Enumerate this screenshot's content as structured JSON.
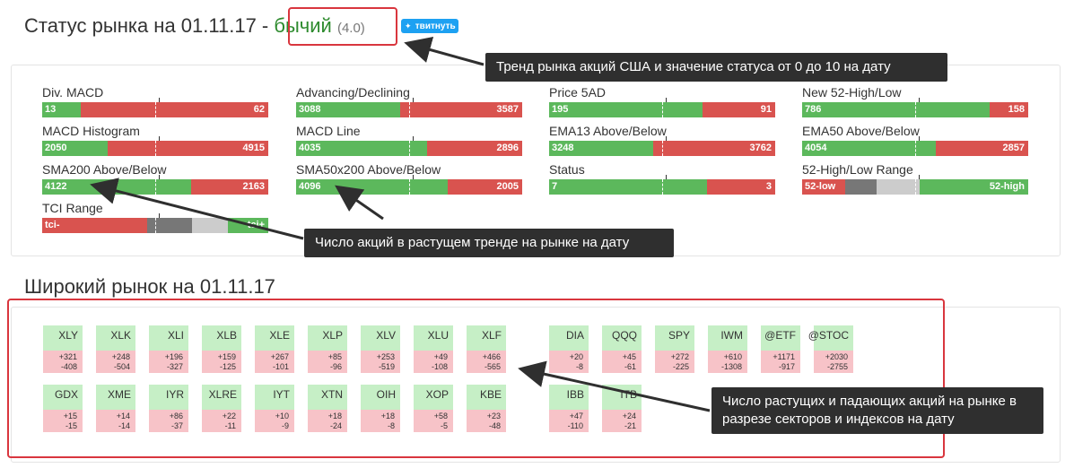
{
  "status": {
    "prefix": "Статус рынка на 01.11.17 -",
    "trend": "бычий",
    "score": "(4.0)",
    "tweet": "твитнуть",
    "colors": {
      "trend": "#2e8b2e",
      "tweet": "#1da1f2"
    }
  },
  "indicators": [
    {
      "label": "Div. MACD",
      "left": "13",
      "right": "62",
      "green_pct": 17
    },
    {
      "label": "Advancing/Declining",
      "left": "3088",
      "right": "3587",
      "green_pct": 46
    },
    {
      "label": "Price 5AD",
      "left": "195",
      "right": "91",
      "green_pct": 68
    },
    {
      "label": "New 52-High/Low",
      "left": "786",
      "right": "158",
      "green_pct": 83
    },
    {
      "label": "MACD Histogram",
      "left": "2050",
      "right": "4915",
      "green_pct": 29
    },
    {
      "label": "MACD Line",
      "left": "4035",
      "right": "2896",
      "green_pct": 58
    },
    {
      "label": "EMA13 Above/Below",
      "left": "3248",
      "right": "3762",
      "green_pct": 46
    },
    {
      "label": "EMA50 Above/Below",
      "left": "4054",
      "right": "2857",
      "green_pct": 59
    },
    {
      "label": "SMA200 Above/Below",
      "left": "4122",
      "right": "2163",
      "green_pct": 66
    },
    {
      "label": "SMA50x200 Above/Below",
      "left": "4096",
      "right": "2005",
      "green_pct": 67
    },
    {
      "label": "Status",
      "left": "7",
      "right": "3",
      "green_pct": 70
    },
    {
      "label": "52-High/Low Range",
      "left": "52-low",
      "right": "52-high",
      "range": true
    },
    {
      "label": "TCI Range",
      "left": "tci-",
      "right": "tci+",
      "tci": true
    }
  ],
  "broad": {
    "title": "Широкий рынок на 01.11.17",
    "row1_sectors": [
      {
        "name": "XLY",
        "up": "+321",
        "down": "-408"
      },
      {
        "name": "XLK",
        "up": "+248",
        "down": "-504"
      },
      {
        "name": "XLI",
        "up": "+196",
        "down": "-327"
      },
      {
        "name": "XLB",
        "up": "+159",
        "down": "-125"
      },
      {
        "name": "XLE",
        "up": "+267",
        "down": "-101"
      },
      {
        "name": "XLP",
        "up": "+85",
        "down": "-96"
      },
      {
        "name": "XLV",
        "up": "+253",
        "down": "-519"
      },
      {
        "name": "XLU",
        "up": "+49",
        "down": "-108"
      },
      {
        "name": "XLF",
        "up": "+466",
        "down": "-565"
      }
    ],
    "row1_indexes": [
      {
        "name": "DIA",
        "up": "+20",
        "down": "-8"
      },
      {
        "name": "QQQ",
        "up": "+45",
        "down": "-61"
      },
      {
        "name": "SPY",
        "up": "+272",
        "down": "-225"
      },
      {
        "name": "IWM",
        "up": "+610",
        "down": "-1308"
      },
      {
        "name": "@ETF",
        "up": "+1171",
        "down": "-917"
      },
      {
        "name": "@STOC",
        "up": "+2030",
        "down": "-2755"
      }
    ],
    "row2_sectors": [
      {
        "name": "GDX",
        "up": "+15",
        "down": "-15"
      },
      {
        "name": "XME",
        "up": "+14",
        "down": "-14"
      },
      {
        "name": "IYR",
        "up": "+86",
        "down": "-37"
      },
      {
        "name": "XLRE",
        "up": "+22",
        "down": "-11"
      },
      {
        "name": "IYT",
        "up": "+10",
        "down": "-9"
      },
      {
        "name": "XTN",
        "up": "+18",
        "down": "-24"
      },
      {
        "name": "OIH",
        "up": "+18",
        "down": "-8"
      },
      {
        "name": "XOP",
        "up": "+58",
        "down": "-5"
      },
      {
        "name": "KBE",
        "up": "+23",
        "down": "-48"
      }
    ],
    "row2_indexes": [
      {
        "name": "IBB",
        "up": "+47",
        "down": "-110"
      },
      {
        "name": "ITB",
        "up": "+24",
        "down": "-21"
      }
    ]
  },
  "callouts": {
    "trend": "Тренд рынка акций США и значение статуса от 0 до 10 на дату",
    "rising": "Число акций в растущем тренде на рынке на дату",
    "sectors": "Число растущих и падающих акций на рынке в разрезе секторов и индексов на дату"
  }
}
